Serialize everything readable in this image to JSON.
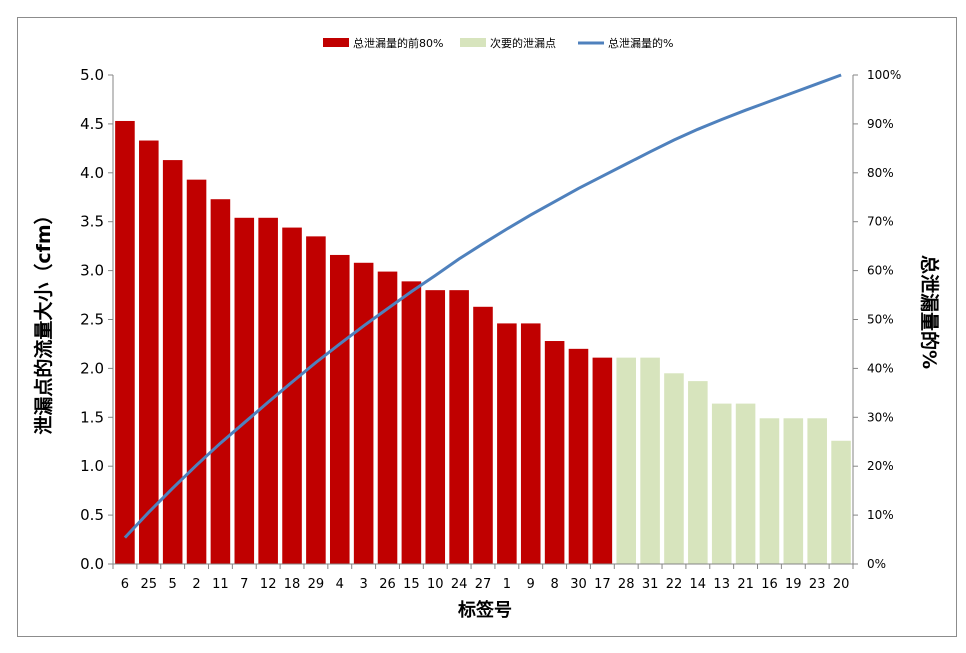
{
  "chart_data": {
    "type": "bar",
    "categories": [
      "6",
      "25",
      "5",
      "2",
      "11",
      "7",
      "12",
      "18",
      "29",
      "4",
      "3",
      "26",
      "15",
      "10",
      "24",
      "27",
      "1",
      "9",
      "8",
      "30",
      "17",
      "28",
      "31",
      "22",
      "14",
      "13",
      "21",
      "16",
      "19",
      "23",
      "20"
    ],
    "values": [
      4.53,
      4.33,
      4.13,
      3.93,
      3.73,
      3.54,
      3.54,
      3.44,
      3.35,
      3.16,
      3.08,
      2.99,
      2.89,
      2.8,
      2.8,
      2.63,
      2.46,
      2.46,
      2.28,
      2.2,
      2.11,
      2.11,
      2.11,
      1.95,
      1.87,
      1.64,
      1.64,
      1.49,
      1.49,
      1.49,
      1.26
    ],
    "group_split_index": 21,
    "cumulative_percent": [
      5.4,
      10.6,
      15.5,
      20.2,
      24.7,
      28.9,
      33.1,
      37.2,
      41.2,
      45.0,
      48.7,
      52.2,
      55.7,
      59.0,
      62.4,
      65.5,
      68.5,
      71.4,
      74.1,
      76.8,
      79.3,
      81.8,
      84.3,
      86.7,
      88.9,
      90.9,
      92.8,
      94.6,
      96.4,
      98.2,
      100.0
    ],
    "ylabel": "泄漏点的流量大小（cfm）",
    "y2label": "总泄漏量的%",
    "xlabel": "标签号",
    "ylim": [
      0,
      5
    ],
    "y2lim": [
      0,
      100
    ],
    "yticks": [
      "0.0",
      "0.5",
      "1.0",
      "1.5",
      "2.0",
      "2.5",
      "3.0",
      "3.5",
      "4.0",
      "4.5",
      "5.0"
    ],
    "y2ticks": [
      "0%",
      "10%",
      "20%",
      "30%",
      "40%",
      "50%",
      "60%",
      "70%",
      "80%",
      "90%",
      "100%"
    ],
    "legend": {
      "placement": "top-center",
      "items": [
        {
          "label": "总泄漏量的前80%",
          "kind": "bar",
          "color": "#c00000"
        },
        {
          "label": "次要的泄漏点",
          "kind": "bar",
          "color": "#d7e4bd"
        },
        {
          "label": "总泄漏量的%",
          "kind": "line",
          "color": "#4f81bd"
        }
      ]
    },
    "colors": {
      "major": "#c00000",
      "minor": "#d7e4bd",
      "line": "#4f81bd",
      "axis": "#868686"
    }
  }
}
